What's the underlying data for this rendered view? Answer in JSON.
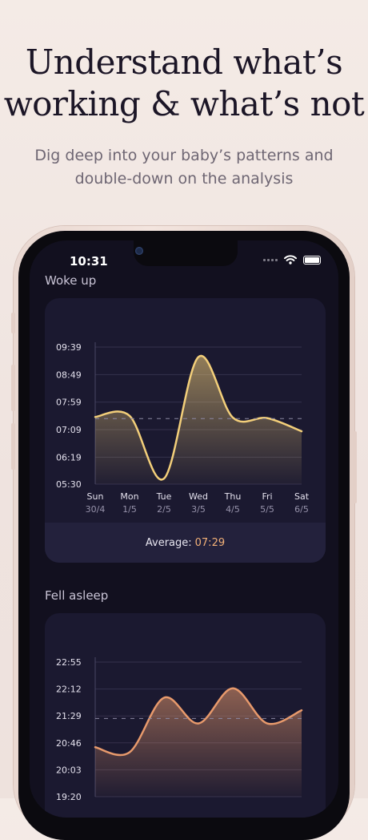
{
  "headline": {
    "line1": "Understand what’s",
    "line2": "working & what’s not"
  },
  "subheadline": {
    "line1": "Dig deep into your baby’s patterns and",
    "line2": "double-down on the analysis"
  },
  "status_bar": {
    "time": "10:31"
  },
  "woke_up": {
    "title": "Woke up",
    "average_label": "Average:",
    "average_value": "07:29"
  },
  "fell_asleep": {
    "title": "Fell asleep"
  },
  "colors": {
    "woke_line": "#f3cf7a",
    "sleep_line": "#e89a6c",
    "average_accent": "#f2b178",
    "card_bg": "#1b1930",
    "screen_bg": "#12101f"
  },
  "chart_data": [
    {
      "type": "area",
      "title": "Woke up",
      "y_tick_labels": [
        "09:39",
        "08:49",
        "07:59",
        "07:09",
        "06:19",
        "05:30"
      ],
      "y_ticks_minutes": [
        579,
        529,
        479,
        429,
        379,
        330
      ],
      "ylim_minutes": [
        330,
        579
      ],
      "categories": [
        "Sun",
        "Mon",
        "Tue",
        "Wed",
        "Thu",
        "Fri",
        "Sat"
      ],
      "dates": [
        "30/4",
        "1/5",
        "2/5",
        "3/5",
        "4/5",
        "5/5",
        "6/5"
      ],
      "values": [
        "07:32",
        "07:34",
        "05:40",
        "09:21",
        "07:31",
        "07:30",
        "07:06"
      ],
      "values_minutes": [
        452,
        454,
        340,
        561,
        451,
        450,
        426
      ],
      "average": "07:29",
      "average_minutes": 449,
      "grid": true
    },
    {
      "type": "area",
      "title": "Fell asleep",
      "y_tick_labels": [
        "22:55",
        "22:12",
        "21:29",
        "20:46",
        "20:03",
        "19:20"
      ],
      "y_ticks_minutes": [
        1375,
        1332,
        1289,
        1246,
        1203,
        1160
      ],
      "ylim_minutes": [
        1160,
        1375
      ],
      "values_minutes": [
        1239,
        1231,
        1318,
        1277,
        1333,
        1277,
        1298
      ],
      "average_minutes": 1285,
      "grid": true
    }
  ]
}
